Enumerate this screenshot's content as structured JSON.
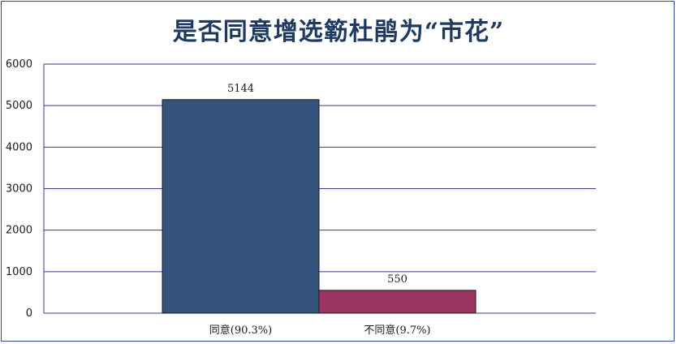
{
  "chart_data": {
    "type": "bar",
    "title": "是否同意增选簕杜鹃为“市花”",
    "categories": [
      "同意(90.3%)",
      "不同意(9.7%)"
    ],
    "values": [
      5144,
      550
    ],
    "data_labels": [
      "5144",
      "550"
    ],
    "bar_colors": [
      "#34527a",
      "#9b3460"
    ],
    "ylim": [
      0,
      6000
    ],
    "yticks": [
      "0",
      "1000",
      "2000",
      "3000",
      "4000",
      "5000",
      "6000"
    ],
    "ytick_values": [
      0,
      1000,
      2000,
      3000,
      4000,
      5000,
      6000
    ],
    "grid": true,
    "gridline_color": "#3a3a8a",
    "xlabel": "",
    "ylabel": ""
  }
}
